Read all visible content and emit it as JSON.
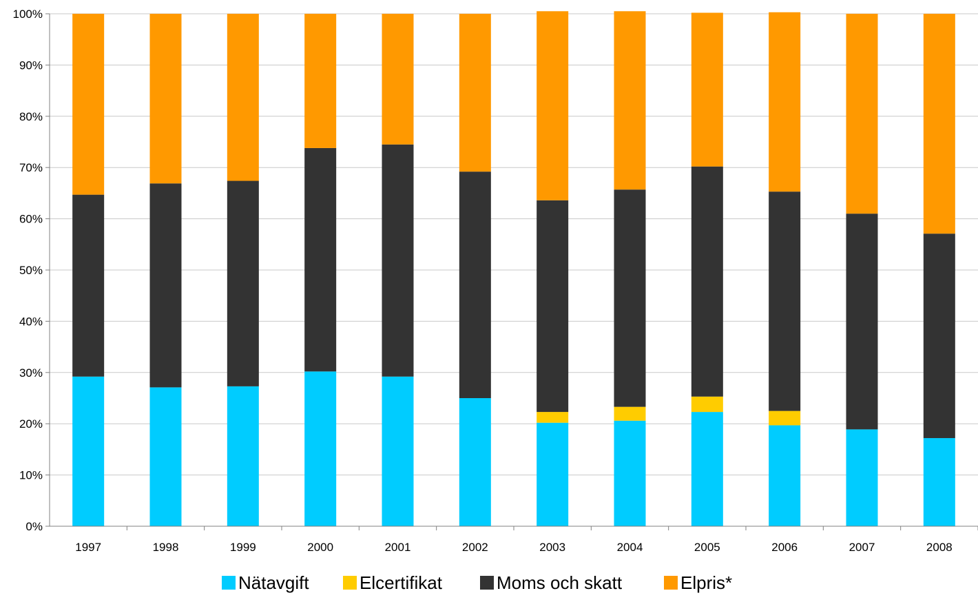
{
  "chart_data": {
    "type": "bar",
    "stacked": true,
    "normalized": true,
    "categories": [
      "1997",
      "1998",
      "1999",
      "2000",
      "2001",
      "2002",
      "2003",
      "2004",
      "2005",
      "2006",
      "2007",
      "2008"
    ],
    "series": [
      {
        "name": "Nätavgift",
        "color": "#00ccff",
        "values": [
          29.2,
          27.1,
          27.3,
          30.2,
          29.2,
          25.0,
          20.2,
          20.6,
          22.3,
          19.7,
          18.9,
          17.2
        ]
      },
      {
        "name": "Elcertifikat",
        "color": "#ffcc00",
        "values": [
          0,
          0,
          0,
          0,
          0,
          0,
          2.1,
          2.7,
          3.0,
          2.8,
          0,
          0
        ]
      },
      {
        "name": "Moms och skatt",
        "color": "#333333",
        "values": [
          35.5,
          39.8,
          40.1,
          43.6,
          45.3,
          44.2,
          41.3,
          42.4,
          44.9,
          42.8,
          42.1,
          39.9
        ]
      },
      {
        "name": "Elpris*",
        "color": "#ff9900",
        "values": [
          35.3,
          33.1,
          32.6,
          26.2,
          25.5,
          30.8,
          36.9,
          34.8,
          30.0,
          35.0,
          39.0,
          42.9
        ]
      }
    ],
    "yticks": [
      "0%",
      "10%",
      "20%",
      "30%",
      "40%",
      "50%",
      "60%",
      "70%",
      "80%",
      "90%",
      "100%"
    ],
    "ylim": [
      0,
      100
    ],
    "grid": true,
    "legend_position": "bottom"
  }
}
